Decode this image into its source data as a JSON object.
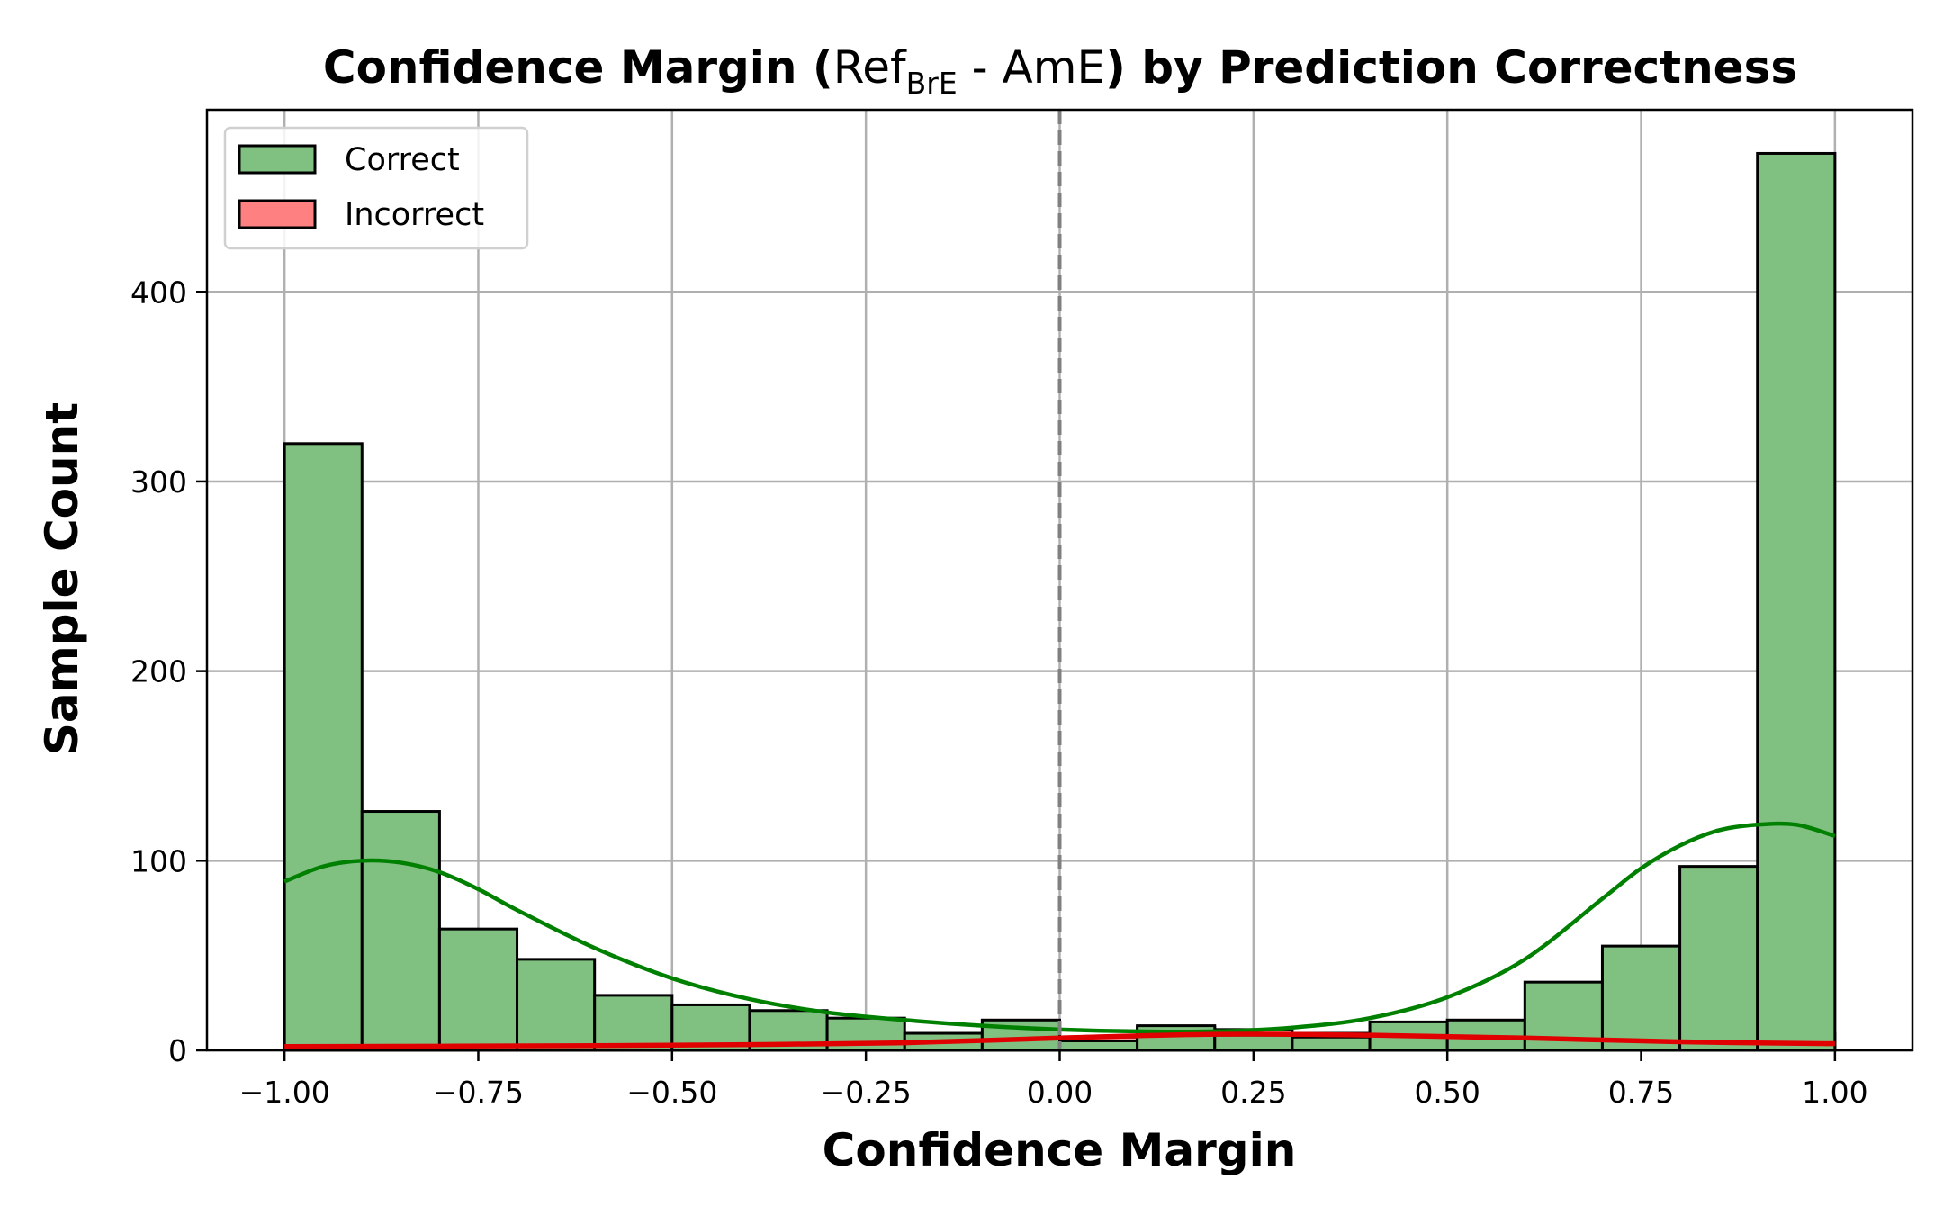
{
  "chart_data": {
    "type": "bar",
    "title": {
      "prefix": "Confidence Margin (",
      "ref": "Ref",
      "ref_sub": "BrE",
      "middle": " - AmE",
      "suffix": ") by Prediction Correctness"
    },
    "xlabel": "Confidence Margin",
    "ylabel": "Sample Count",
    "xlim": [
      -1.1,
      1.1
    ],
    "ylim": [
      0,
      496
    ],
    "xticks": [
      -1.0,
      -0.75,
      -0.5,
      -0.25,
      0.0,
      0.25,
      0.5,
      0.75,
      1.0
    ],
    "xtick_labels": [
      "−1.00",
      "−0.75",
      "−0.50",
      "−0.25",
      "0.00",
      "0.25",
      "0.50",
      "0.75",
      "1.00"
    ],
    "yticks": [
      0,
      100,
      200,
      300,
      400
    ],
    "ytick_labels": [
      "0",
      "100",
      "200",
      "300",
      "400"
    ],
    "grid": true,
    "legend_position": "top-left",
    "reference_line_x": 0.0,
    "bin_edges": [
      -1.0,
      -0.9,
      -0.8,
      -0.7,
      -0.6,
      -0.5,
      -0.4,
      -0.3,
      -0.2,
      -0.1,
      0.0,
      0.1,
      0.2,
      0.3,
      0.4,
      0.5,
      0.6,
      0.7,
      0.8,
      0.9,
      1.0
    ],
    "series": [
      {
        "name": "Correct",
        "fill": "#80c080",
        "line": "#008000",
        "values": [
          320,
          126,
          64,
          48,
          29,
          24,
          21,
          17,
          9,
          16,
          5,
          13,
          8,
          7,
          15,
          16,
          36,
          55,
          97,
          473
        ],
        "kde": [
          [
            -1.0,
            89
          ],
          [
            -0.95,
            97
          ],
          [
            -0.9,
            100
          ],
          [
            -0.85,
            99
          ],
          [
            -0.8,
            94
          ],
          [
            -0.75,
            85
          ],
          [
            -0.7,
            74
          ],
          [
            -0.6,
            54
          ],
          [
            -0.5,
            38
          ],
          [
            -0.4,
            27
          ],
          [
            -0.3,
            20
          ],
          [
            -0.2,
            16
          ],
          [
            -0.1,
            13
          ],
          [
            0.0,
            11
          ],
          [
            0.1,
            10
          ],
          [
            0.2,
            10
          ],
          [
            0.3,
            12
          ],
          [
            0.4,
            17
          ],
          [
            0.5,
            28
          ],
          [
            0.6,
            48
          ],
          [
            0.7,
            80
          ],
          [
            0.75,
            96
          ],
          [
            0.8,
            108
          ],
          [
            0.85,
            116
          ],
          [
            0.9,
            119
          ],
          [
            0.95,
            119
          ],
          [
            1.0,
            113
          ]
        ]
      },
      {
        "name": "Incorrect",
        "fill": "#ff8080",
        "line": "#e00000",
        "values": [
          2,
          3,
          2,
          2,
          2,
          2,
          2,
          2,
          3,
          4,
          7,
          12,
          11,
          9,
          8,
          8,
          6,
          5,
          5,
          9
        ],
        "kde": [
          [
            -1.0,
            2
          ],
          [
            -0.8,
            2.2
          ],
          [
            -0.6,
            2.5
          ],
          [
            -0.4,
            3
          ],
          [
            -0.2,
            4
          ],
          [
            0.0,
            6.5
          ],
          [
            0.2,
            8.5
          ],
          [
            0.4,
            8
          ],
          [
            0.6,
            6.5
          ],
          [
            0.8,
            4.5
          ],
          [
            1.0,
            3.5
          ]
        ]
      }
    ]
  }
}
